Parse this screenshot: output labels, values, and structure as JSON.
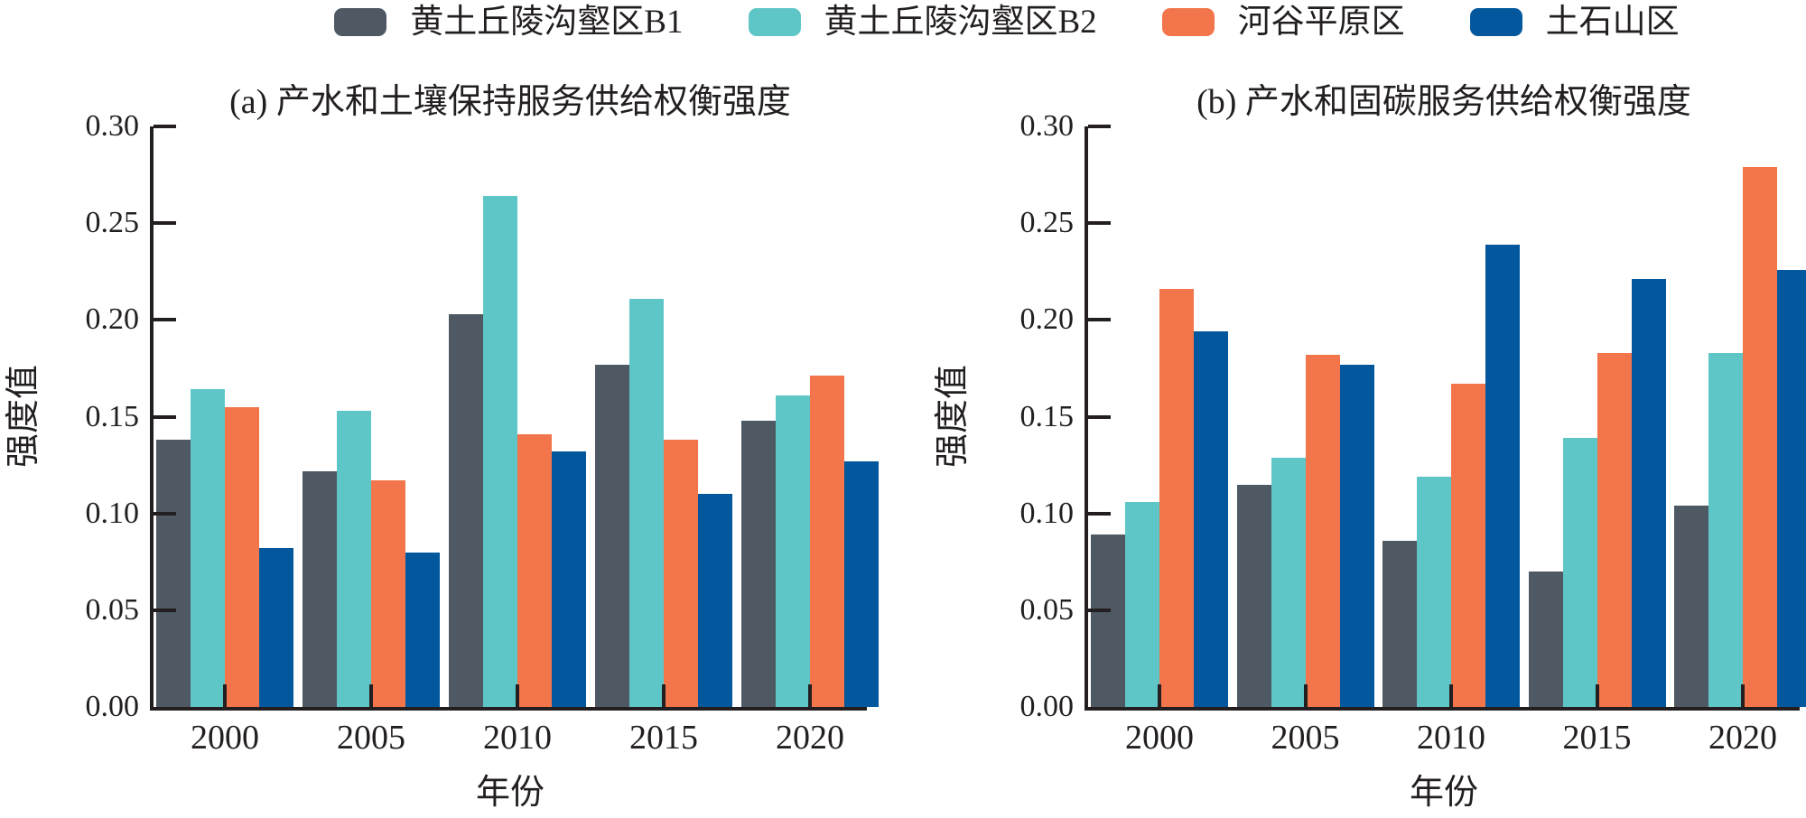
{
  "page": {
    "background": "#ffffff",
    "text_color": "#231f20"
  },
  "legend": {
    "items": [
      {
        "name": "loess-hilly-gully-b1",
        "label": "黄土丘陵沟壑区B1",
        "color": "#4e5964"
      },
      {
        "name": "loess-hilly-gully-b2",
        "label": "黄土丘陵沟壑区B2",
        "color": "#5fc6c7"
      },
      {
        "name": "river-valley-plain",
        "label": "河谷平原区",
        "color": "#f2754b"
      },
      {
        "name": "earth-rock-mountain",
        "label": "土石山区",
        "color": "#03589d"
      }
    ]
  },
  "axis": {
    "y_tick_labels": [
      "0.00",
      "0.05",
      "0.10",
      "0.15",
      "0.20",
      "0.25",
      "0.30"
    ],
    "x_tick_labels": [
      "2000",
      "2005",
      "2010",
      "2015",
      "2020"
    ]
  },
  "chart_data": [
    {
      "type": "bar",
      "title": "(a) 产水和土壤保持服务供给权衡强度",
      "xlabel": "年份",
      "ylabel": "强度值",
      "ylim": [
        0,
        0.3
      ],
      "ytick_step": 0.05,
      "grid": false,
      "legend_position": "top-center",
      "categories": [
        "2000",
        "2005",
        "2010",
        "2015",
        "2020"
      ],
      "series": [
        {
          "name": "黄土丘陵沟壑区B1",
          "color": "#4e5964",
          "values": [
            0.138,
            0.122,
            0.203,
            0.177,
            0.148
          ]
        },
        {
          "name": "黄土丘陵沟壑区B2",
          "color": "#5fc6c7",
          "values": [
            0.164,
            0.153,
            0.264,
            0.211,
            0.161
          ]
        },
        {
          "name": "河谷平原区",
          "color": "#f2754b",
          "values": [
            0.155,
            0.117,
            0.141,
            0.138,
            0.171
          ]
        },
        {
          "name": "土石山区",
          "color": "#03589d",
          "values": [
            0.082,
            0.08,
            0.132,
            0.11,
            0.127
          ]
        }
      ]
    },
    {
      "type": "bar",
      "title": "(b) 产水和固碳服务供给权衡强度",
      "xlabel": "年份",
      "ylabel": "强度值",
      "ylim": [
        0,
        0.3
      ],
      "ytick_step": 0.05,
      "grid": false,
      "legend_position": "top-center",
      "categories": [
        "2000",
        "2005",
        "2010",
        "2015",
        "2020"
      ],
      "series": [
        {
          "name": "黄土丘陵沟壑区B1",
          "color": "#4e5964",
          "values": [
            0.089,
            0.115,
            0.086,
            0.07,
            0.104
          ]
        },
        {
          "name": "黄土丘陵沟壑区B2",
          "color": "#5fc6c7",
          "values": [
            0.106,
            0.129,
            0.119,
            0.139,
            0.183
          ]
        },
        {
          "name": "河谷平原区",
          "color": "#f2754b",
          "values": [
            0.216,
            0.182,
            0.167,
            0.183,
            0.279
          ]
        },
        {
          "name": "土石山区",
          "color": "#03589d",
          "values": [
            0.194,
            0.177,
            0.239,
            0.221,
            0.226
          ]
        }
      ]
    }
  ]
}
